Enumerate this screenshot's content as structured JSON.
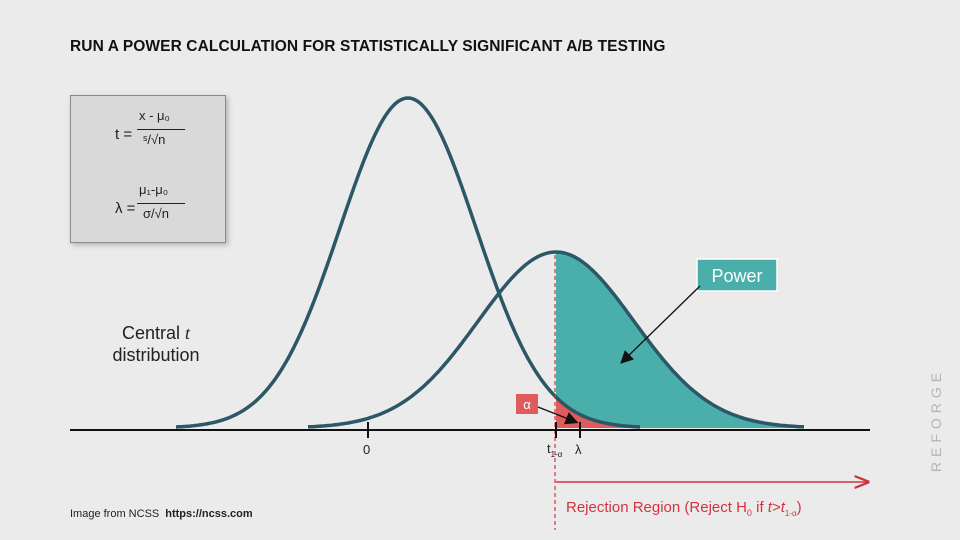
{
  "title": "RUN A POWER CALCULATION FOR STATISTICALLY SIGNIFICANT A/B TESTING",
  "formula_t": {
    "lhs": "t =",
    "numerator": "x - μ₀",
    "denominator": "ˢ/√n"
  },
  "formula_lambda": {
    "lhs": "λ =",
    "numerator": "μ₁-μ₀",
    "denominator": "σ/√n"
  },
  "central_label": {
    "line1": "Central",
    "italic": "t",
    "line2": "distribution"
  },
  "power_label": "Power",
  "alpha_label": "α",
  "axis": {
    "zero": "0",
    "t_crit": "t",
    "t_crit_sub": "1-α",
    "lambda": "λ"
  },
  "rejection_label": {
    "prefix": "Rejection Region (Reject H",
    "sub": "0",
    "mid": " if ",
    "t": "t",
    "gt": ">",
    "t2": "t",
    "t2_sub": "1-α",
    "close": ")"
  },
  "source": {
    "text": "Image from NCSS",
    "url": "https://ncss.com"
  },
  "brand": "REFORGE",
  "colors": {
    "curve": "#2c5766",
    "power": "#4aaeaa",
    "alpha": "#e05b5b",
    "reject": "#d2343f"
  }
}
